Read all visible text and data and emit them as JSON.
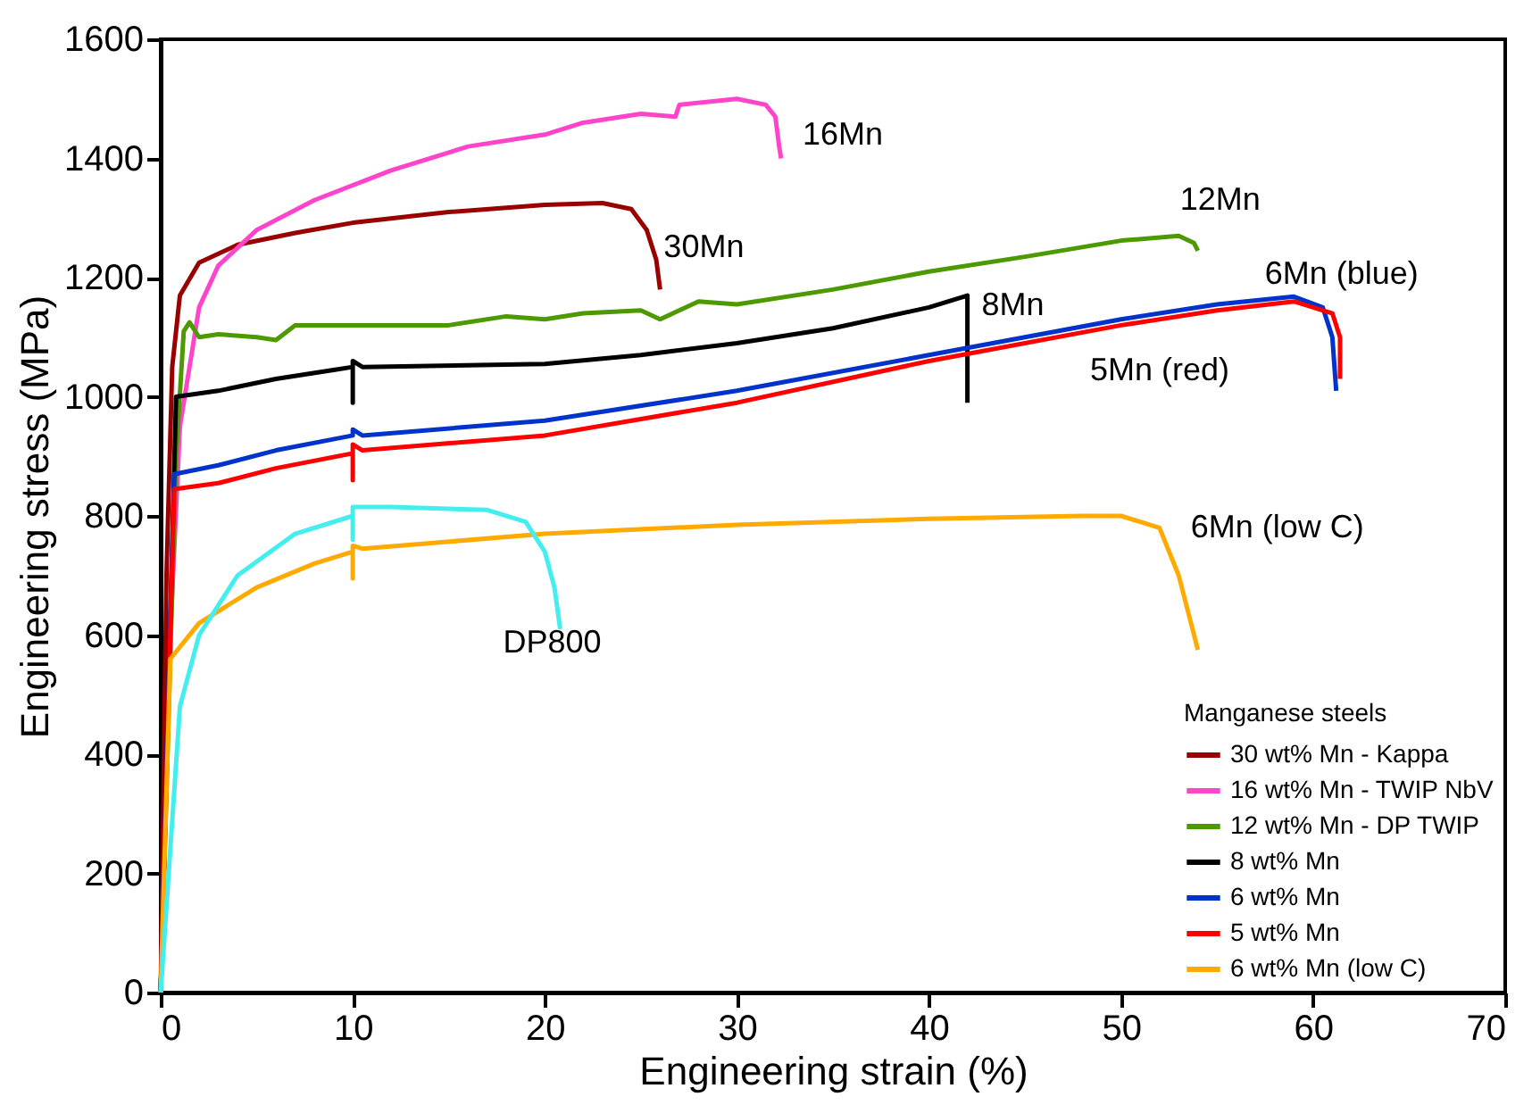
{
  "chart_data": {
    "type": "line",
    "xlabel": "Engineering strain (%)",
    "ylabel": "Engineering stress (MPa)",
    "legend_title": "Manganese steels",
    "legend": "bottom right",
    "grid": false,
    "line_style": "solid",
    "marker": "none",
    "xlim": [
      0,
      70
    ],
    "xticks": [
      0,
      10,
      20,
      30,
      40,
      50,
      60,
      70
    ],
    "ylim": [
      0,
      1600
    ],
    "yticks": [
      0,
      200,
      400,
      600,
      800,
      {
        "value": 1000,
        "label": "1000"
      },
      {
        "value": 1200,
        "label": "1200"
      },
      {
        "value": 1400,
        "label": "1400"
      },
      {
        "value": 1600,
        "label": "1600"
      }
    ],
    "series": [
      {
        "name": "30 wt% Mn - Kappa",
        "color": "#990000",
        "x": [
          0,
          0.3,
          0.6,
          1,
          2,
          4,
          7,
          10,
          15,
          20,
          23,
          24.5,
          25.3,
          25.8,
          26
        ],
        "values": [
          0,
          700,
          1050,
          1170,
          1225,
          1255,
          1275,
          1292,
          1310,
          1322,
          1325,
          1315,
          1280,
          1230,
          1180
        ]
      },
      {
        "name": "16 wt% Mn - TWIP NbV",
        "color": "#ff44cc",
        "x": [
          0,
          0.5,
          1,
          2,
          3,
          5,
          8,
          12,
          16,
          20,
          22,
          25,
          26.8,
          27,
          30,
          31.5,
          32,
          32.2,
          32.3
        ],
        "values": [
          0,
          600,
          950,
          1150,
          1220,
          1280,
          1330,
          1380,
          1420,
          1440,
          1460,
          1475,
          1470,
          1490,
          1500,
          1490,
          1470,
          1420,
          1400
        ]
      },
      {
        "name": "12 wt% Mn - DP TWIP",
        "color": "#4c9900",
        "x": [
          0,
          0.8,
          1.2,
          1.5,
          2,
          3,
          5,
          6,
          7,
          10,
          15,
          18,
          20,
          22,
          25,
          26,
          28,
          30,
          35,
          40,
          45,
          50,
          53,
          53.8,
          54
        ],
        "values": [
          0,
          900,
          1110,
          1125,
          1100,
          1105,
          1100,
          1095,
          1120,
          1120,
          1120,
          1135,
          1130,
          1140,
          1145,
          1130,
          1160,
          1155,
          1180,
          1210,
          1235,
          1262,
          1270,
          1258,
          1245
        ]
      },
      {
        "name": "8 wt% Mn",
        "color": "#000000",
        "x": [
          0,
          0.8,
          3,
          6,
          9,
          10,
          10,
          10,
          10.5,
          20,
          25,
          30,
          35,
          40,
          42,
          42
        ],
        "values": [
          0,
          1000,
          1010,
          1030,
          1045,
          1050,
          990,
          1060,
          1050,
          1055,
          1070,
          1090,
          1115,
          1150,
          1170,
          990
        ]
      },
      {
        "name": "6 wt% Mn",
        "color": "#0033cc",
        "x": [
          0,
          0.7,
          3,
          6,
          10,
          10,
          10.5,
          20,
          30,
          40,
          50,
          55,
          59,
          60.5,
          61,
          61.2
        ],
        "values": [
          0,
          870,
          885,
          910,
          935,
          945,
          935,
          960,
          1010,
          1070,
          1130,
          1155,
          1168,
          1150,
          1100,
          1010
        ]
      },
      {
        "name": "5 wt% Mn",
        "color": "#ff0000",
        "x": [
          0,
          0.7,
          3,
          6,
          10,
          10,
          10,
          10.5,
          20,
          30,
          40,
          50,
          55,
          59,
          61,
          61.4,
          61.4
        ],
        "values": [
          0,
          845,
          855,
          880,
          905,
          860,
          920,
          910,
          935,
          990,
          1060,
          1120,
          1145,
          1160,
          1140,
          1100,
          1030
        ]
      },
      {
        "name": "6 wt% Mn (low C)",
        "color": "#ffaa00",
        "x": [
          0,
          0.5,
          2,
          5,
          8,
          10,
          10,
          10,
          10.5,
          20,
          30,
          40,
          48,
          50,
          52,
          53,
          54
        ],
        "values": [
          0,
          560,
          620,
          680,
          720,
          740,
          695,
          750,
          745,
          770,
          785,
          795,
          800,
          800,
          780,
          700,
          575
        ]
      },
      {
        "color": "#44eeee",
        "x": [
          0,
          1,
          2,
          4,
          7,
          10,
          10,
          10,
          12,
          17,
          19,
          20,
          20.5,
          20.8
        ],
        "values": [
          0,
          480,
          600,
          700,
          770,
          800,
          760,
          815,
          815,
          810,
          790,
          740,
          680,
          610
        ]
      }
    ],
    "annotations": [
      "30Mn",
      "16Mn",
      "12Mn",
      "8Mn",
      "6Mn (blue)",
      "5Mn (red)",
      "6Mn (low C)",
      "DP800"
    ]
  }
}
